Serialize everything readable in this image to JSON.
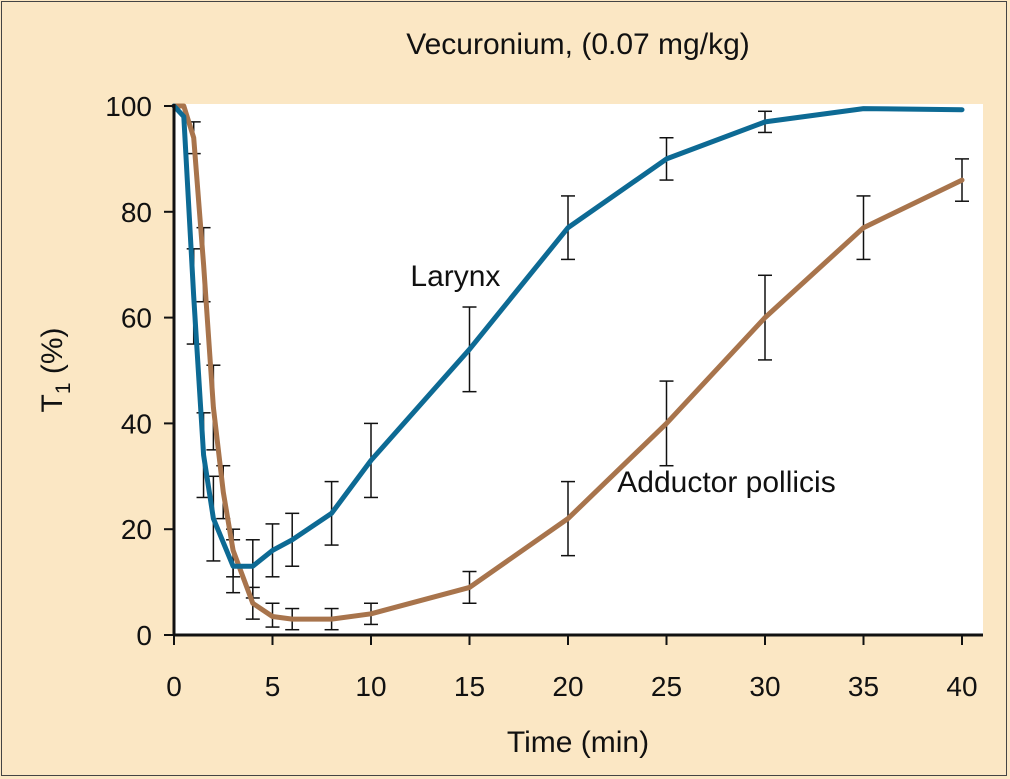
{
  "chart_data": {
    "type": "line",
    "title": "Vecuronium, (0.07 mg/kg)",
    "xlabel": "Time (min)",
    "ylabel": {
      "main": "T",
      "sub": "1",
      "rest": " (%)"
    },
    "xlim": [
      0,
      40
    ],
    "ylim": [
      0,
      100
    ],
    "xticks": [
      0,
      5,
      10,
      15,
      20,
      25,
      30,
      35,
      40
    ],
    "yticks": [
      0,
      20,
      40,
      60,
      80,
      100
    ],
    "grid": false,
    "legend": "none",
    "annotations": [
      {
        "text": "Larynx",
        "series": "Larynx",
        "x": 12,
        "y": 66
      },
      {
        "text": "Adductor pollicis",
        "series": "Adductor pollicis",
        "x": 22.5,
        "y": 27
      }
    ],
    "series": [
      {
        "name": "Larynx",
        "color": "#0d6a94",
        "x": [
          0,
          0.5,
          1,
          1.5,
          2,
          3,
          4,
          5,
          6,
          8,
          10,
          15,
          20,
          25,
          30,
          35,
          40
        ],
        "y": [
          100,
          98,
          64,
          34,
          22,
          13,
          13,
          16,
          18,
          23,
          33,
          54,
          77,
          90,
          97,
          99.5,
          99.3
        ],
        "error_bars": [
          {
            "x": 1,
            "low": 55,
            "high": 73
          },
          {
            "x": 1.5,
            "low": 26,
            "high": 42
          },
          {
            "x": 2,
            "low": 14,
            "high": 30
          },
          {
            "x": 3,
            "low": 8,
            "high": 18
          },
          {
            "x": 4,
            "low": 7,
            "high": 18
          },
          {
            "x": 5,
            "low": 11,
            "high": 21
          },
          {
            "x": 6,
            "low": 13,
            "high": 23
          },
          {
            "x": 8,
            "low": 17,
            "high": 29
          },
          {
            "x": 10,
            "low": 26,
            "high": 40
          },
          {
            "x": 15,
            "low": 46,
            "high": 62
          },
          {
            "x": 20,
            "low": 71,
            "high": 83
          },
          {
            "x": 25,
            "low": 86,
            "high": 94
          },
          {
            "x": 30,
            "low": 95,
            "high": 99
          }
        ]
      },
      {
        "name": "Adductor pollicis",
        "color": "#a8744c",
        "x": [
          0,
          0.5,
          1,
          1.5,
          2,
          2.5,
          3,
          4,
          5,
          6,
          8,
          10,
          15,
          20,
          25,
          30,
          35,
          40
        ],
        "y": [
          100,
          100,
          94,
          70,
          43,
          27,
          16,
          6,
          3.5,
          3,
          3,
          4,
          9,
          22,
          40,
          60,
          77,
          86
        ],
        "error_bars": [
          {
            "x": 1,
            "low": 91,
            "high": 97
          },
          {
            "x": 1.5,
            "low": 63,
            "high": 77
          },
          {
            "x": 2,
            "low": 35,
            "high": 51
          },
          {
            "x": 2.5,
            "low": 22,
            "high": 32
          },
          {
            "x": 3,
            "low": 11,
            "high": 20
          },
          {
            "x": 4,
            "low": 3,
            "high": 9
          },
          {
            "x": 5,
            "low": 1.5,
            "high": 6
          },
          {
            "x": 6,
            "low": 1,
            "high": 5
          },
          {
            "x": 8,
            "low": 1,
            "high": 5
          },
          {
            "x": 10,
            "low": 2,
            "high": 6
          },
          {
            "x": 15,
            "low": 6,
            "high": 12
          },
          {
            "x": 20,
            "low": 15,
            "high": 29
          },
          {
            "x": 25,
            "low": 32,
            "high": 48
          },
          {
            "x": 30,
            "low": 52,
            "high": 68
          },
          {
            "x": 35,
            "low": 71,
            "high": 83
          },
          {
            "x": 40,
            "low": 82,
            "high": 90
          }
        ]
      }
    ]
  }
}
